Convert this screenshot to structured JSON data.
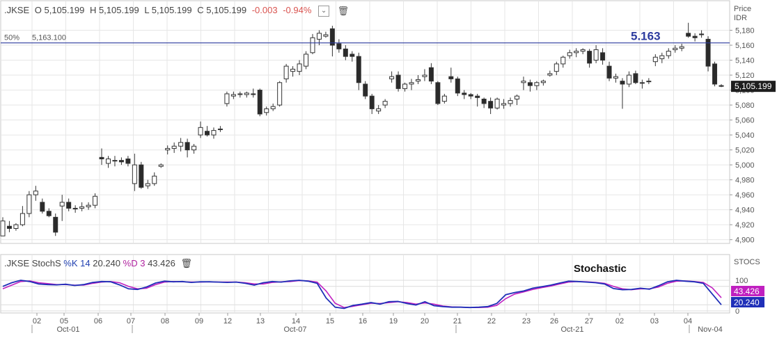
{
  "header": {
    "symbol": ".JKSE",
    "open": "O 5,105.199",
    "high": "H 5,105.199",
    "low": "L 5,105.199",
    "close": "C 5,105.199",
    "change": "-0.003",
    "change_pct": "-0.94%"
  },
  "price_axis": {
    "title_1": "Price",
    "title_2": "IDR",
    "last_price_label": "5,105.199"
  },
  "fib_line": {
    "label_pct": "50%",
    "label_value": "5,163.100",
    "big_label": "5.163",
    "value": 5163.1
  },
  "stoch_header": {
    "symbol": ".JKSE",
    "name": "StochS",
    "k_label": "%K",
    "k_period": "14",
    "k_value": "20.240",
    "d_label": "%D",
    "d_period": "3",
    "d_value": "43.426"
  },
  "stoch_axis": {
    "title": "STOCS",
    "tick_100": "100",
    "tick_0": "0",
    "badge_d": "43.426",
    "badge_k": "20.240"
  },
  "stoch_annotation": "Stochastic",
  "x_labels": {
    "days": [
      "02",
      "05",
      "06",
      "07",
      "08",
      "09",
      "12",
      "13",
      "14",
      "15",
      "16",
      "19",
      "20",
      "21",
      "22",
      "23",
      "26",
      "27",
      "02",
      "03",
      "04"
    ],
    "months": [
      "Oct-01",
      "Oct-07",
      "Oct-21",
      "Nov-04"
    ]
  },
  "chart_data": [
    {
      "type": "candlestick",
      "title": "",
      "ylabel": "Price IDR",
      "ylim": [
        4895,
        5200
      ],
      "yticks": [
        4900,
        4920,
        4940,
        4960,
        4980,
        5000,
        5020,
        5040,
        5060,
        5080,
        5100,
        5120,
        5140,
        5160,
        5180
      ],
      "ytick_labels": [
        "4,900",
        "4,920",
        "4,940",
        "4,960",
        "4,980",
        "5,000",
        "5,020",
        "5,040",
        "5,060",
        "5,080",
        "5,100",
        "5,120",
        "5,140",
        "5,160",
        "5,180"
      ],
      "horizontal_line": 5163.1,
      "candles": [
        [
          4905,
          4930,
          4905,
          4925
        ],
        [
          4918,
          4925,
          4910,
          4915
        ],
        [
          4915,
          4922,
          4912,
          4920
        ],
        [
          4920,
          4945,
          4918,
          4935
        ],
        [
          4935,
          4965,
          4930,
          4960
        ],
        [
          4960,
          4972,
          4952,
          4965
        ],
        [
          4950,
          4955,
          4935,
          4938
        ],
        [
          4938,
          4942,
          4930,
          4932
        ],
        [
          4930,
          4935,
          4905,
          4910
        ],
        [
          4945,
          4960,
          4925,
          4950
        ],
        [
          4950,
          4955,
          4938,
          4942
        ],
        [
          4942,
          4946,
          4936,
          4942
        ],
        [
          4942,
          4950,
          4938,
          4944
        ],
        [
          4944,
          4950,
          4940,
          4946
        ],
        [
          4946,
          4962,
          4942,
          4958
        ],
        [
          5010,
          5022,
          5000,
          5008
        ],
        [
          5002,
          5012,
          4996,
          5008
        ],
        [
          5006,
          5012,
          4998,
          5006
        ],
        [
          5006,
          5010,
          5000,
          5004
        ],
        [
          5008,
          5012,
          4998,
          5002
        ],
        [
          4975,
          5015,
          4965,
          5000
        ],
        [
          5000,
          5004,
          4968,
          4970
        ],
        [
          4972,
          4980,
          4968,
          4975
        ],
        [
          4975,
          4990,
          4972,
          4985
        ],
        [
          4998,
          5002,
          4996,
          5000
        ],
        [
          5020,
          5026,
          5014,
          5022
        ],
        [
          5022,
          5030,
          5016,
          5025
        ],
        [
          5025,
          5036,
          5018,
          5030
        ],
        [
          5030,
          5035,
          5010,
          5020
        ],
        [
          5020,
          5028,
          5015,
          5025
        ],
        [
          5040,
          5058,
          5036,
          5050
        ],
        [
          5045,
          5052,
          5038,
          5040
        ],
        [
          5040,
          5050,
          5035,
          5046
        ],
        [
          5048,
          5052,
          5044,
          5048
        ],
        [
          5082,
          5098,
          5078,
          5095
        ],
        [
          5092,
          5098,
          5088,
          5094
        ],
        [
          5094,
          5098,
          5090,
          5095
        ],
        [
          5094,
          5098,
          5090,
          5096
        ],
        [
          5095,
          5102,
          5090,
          5094
        ],
        [
          5100,
          5102,
          5065,
          5068
        ],
        [
          5070,
          5078,
          5066,
          5075
        ],
        [
          5075,
          5082,
          5072,
          5078
        ],
        [
          5080,
          5112,
          5078,
          5110
        ],
        [
          5115,
          5135,
          5110,
          5132
        ],
        [
          5125,
          5132,
          5118,
          5128
        ],
        [
          5125,
          5140,
          5120,
          5135
        ],
        [
          5132,
          5152,
          5128,
          5148
        ],
        [
          5150,
          5175,
          5148,
          5170
        ],
        [
          5168,
          5180,
          5160,
          5176
        ],
        [
          5172,
          5178,
          5170,
          5174
        ],
        [
          5182,
          5186,
          5145,
          5160
        ],
        [
          5162,
          5168,
          5150,
          5155
        ],
        [
          5155,
          5160,
          5140,
          5145
        ],
        [
          5148,
          5152,
          5138,
          5145
        ],
        [
          5145,
          5150,
          5100,
          5110
        ],
        [
          5108,
          5112,
          5088,
          5092
        ],
        [
          5092,
          5095,
          5068,
          5075
        ],
        [
          5072,
          5080,
          5068,
          5075
        ],
        [
          5080,
          5088,
          5076,
          5085
        ],
        [
          5115,
          5125,
          5110,
          5118
        ],
        [
          5120,
          5125,
          5098,
          5102
        ],
        [
          5102,
          5110,
          5098,
          5108
        ],
        [
          5108,
          5115,
          5100,
          5110
        ],
        [
          5112,
          5120,
          5108,
          5114
        ],
        [
          5118,
          5128,
          5112,
          5120
        ],
        [
          5130,
          5136,
          5108,
          5112
        ],
        [
          5110,
          5112,
          5080,
          5082
        ],
        [
          5085,
          5095,
          5082,
          5092
        ],
        [
          5118,
          5130,
          5110,
          5115
        ],
        [
          5115,
          5118,
          5092,
          5096
        ],
        [
          5096,
          5100,
          5088,
          5094
        ],
        [
          5094,
          5096,
          5088,
          5092
        ],
        [
          5092,
          5095,
          5078,
          5090
        ],
        [
          5088,
          5090,
          5076,
          5082
        ],
        [
          5085,
          5090,
          5068,
          5076
        ],
        [
          5076,
          5090,
          5074,
          5088
        ],
        [
          5080,
          5088,
          5075,
          5082
        ],
        [
          5082,
          5090,
          5078,
          5086
        ],
        [
          5088,
          5094,
          5080,
          5092
        ],
        [
          5110,
          5118,
          5100,
          5112
        ],
        [
          5110,
          5114,
          5098,
          5106
        ],
        [
          5106,
          5112,
          5100,
          5110
        ],
        [
          5110,
          5114,
          5106,
          5112
        ],
        [
          5120,
          5126,
          5118,
          5122
        ],
        [
          5125,
          5138,
          5120,
          5135
        ],
        [
          5135,
          5146,
          5130,
          5144
        ],
        [
          5146,
          5154,
          5142,
          5150
        ],
        [
          5150,
          5156,
          5144,
          5152
        ],
        [
          5152,
          5156,
          5148,
          5154
        ],
        [
          5152,
          5155,
          5130,
          5136
        ],
        [
          5140,
          5160,
          5136,
          5154
        ],
        [
          5150,
          5156,
          5134,
          5140
        ],
        [
          5132,
          5138,
          5112,
          5116
        ],
        [
          5116,
          5122,
          5110,
          5118
        ],
        [
          5112,
          5116,
          5075,
          5108
        ],
        [
          5108,
          5125,
          5104,
          5120
        ],
        [
          5122,
          5126,
          5108,
          5110
        ],
        [
          5110,
          5114,
          5102,
          5110
        ],
        [
          5112,
          5116,
          5108,
          5112
        ],
        [
          5138,
          5148,
          5132,
          5144
        ],
        [
          5142,
          5150,
          5136,
          5146
        ],
        [
          5146,
          5156,
          5142,
          5152
        ],
        [
          5154,
          5160,
          5150,
          5156
        ],
        [
          5156,
          5162,
          5152,
          5158
        ],
        [
          5176,
          5190,
          5170,
          5172
        ],
        [
          5172,
          5176,
          5165,
          5170
        ],
        [
          5175,
          5180,
          5170,
          5174
        ],
        [
          5168,
          5172,
          5125,
          5132
        ],
        [
          5135,
          5138,
          5105,
          5108
        ],
        [
          5106,
          5108,
          5104,
          5105
        ]
      ]
    },
    {
      "type": "line",
      "title": "",
      "ylim": [
        0,
        100
      ],
      "series": [
        {
          "name": "%K",
          "color": "#1f2fb8",
          "values": [
            80,
            92,
            100,
            96,
            88,
            86,
            85,
            87,
            83,
            86,
            93,
            96,
            95,
            85,
            72,
            70,
            78,
            91,
            97,
            95,
            96,
            93,
            95,
            95,
            94,
            93,
            94,
            90,
            84,
            92,
            96,
            94,
            98,
            100,
            97,
            90,
            42,
            12,
            8,
            18,
            22,
            27,
            22,
            30,
            31,
            24,
            19,
            30,
            17,
            14,
            12,
            12,
            11,
            12,
            14,
            24,
            53,
            60,
            65,
            74,
            79,
            84,
            91,
            97,
            96,
            94,
            92,
            88,
            73,
            69,
            70,
            74,
            71,
            82,
            95,
            100,
            97,
            95,
            90,
            55,
            20
          ]
        },
        {
          "name": "%D",
          "color": "#c020c0",
          "values": [
            72,
            84,
            96,
            98,
            92,
            89,
            86,
            86,
            84,
            84,
            90,
            94,
            96,
            92,
            80,
            72,
            74,
            86,
            94,
            96,
            95,
            94,
            94,
            95,
            94,
            94,
            94,
            92,
            88,
            88,
            93,
            95,
            96,
            99,
            98,
            94,
            65,
            25,
            11,
            15,
            20,
            25,
            24,
            27,
            30,
            27,
            22,
            26,
            22,
            16,
            13,
            12,
            11,
            11,
            12,
            18,
            40,
            55,
            62,
            70,
            76,
            81,
            88,
            94,
            96,
            95,
            93,
            90,
            80,
            72,
            69,
            72,
            72,
            78,
            90,
            97,
            98,
            96,
            93,
            75,
            43
          ]
        }
      ]
    }
  ]
}
